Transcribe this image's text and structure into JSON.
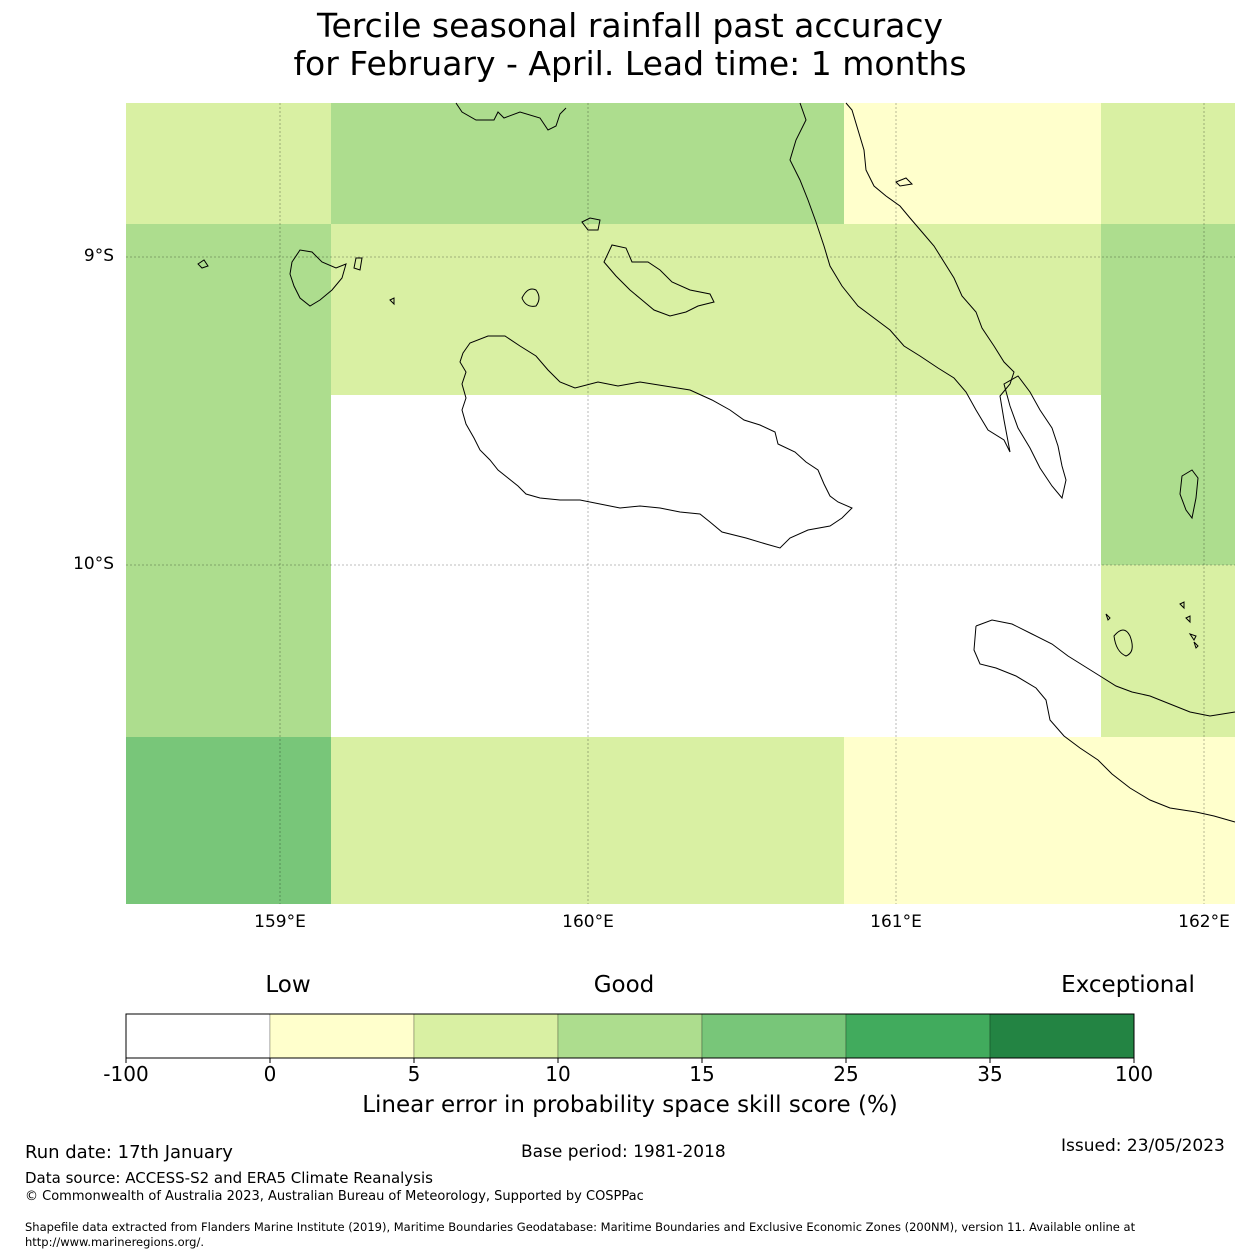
{
  "title": {
    "line1": "Tercile seasonal rainfall past accuracy",
    "line2": "for February - April. Lead time: 1 months"
  },
  "map": {
    "lat_labels": [
      "9°S",
      "10°S"
    ],
    "lon_labels": [
      "159°E",
      "160°E",
      "161°E",
      "162°E"
    ],
    "colors": {
      "none": "#ffffff",
      "c0_5": "#ffffcc",
      "c5_10": "#d9f0a3",
      "c10_15": "#addd8e",
      "c15_25": "#78c679",
      "c25_35": "#41ab5d",
      "c35_100": "#238443"
    },
    "cells": [
      {
        "row": 0,
        "col": 0,
        "category": "c5_10"
      },
      {
        "row": 0,
        "col": 1,
        "category": "c10_15"
      },
      {
        "row": 0,
        "col": 2,
        "category": "c0_5"
      },
      {
        "row": 0,
        "col": 3,
        "category": "c5_10"
      },
      {
        "row": 1,
        "col": 0,
        "category": "c10_15"
      },
      {
        "row": 1,
        "col": 1,
        "category": "c5_10"
      },
      {
        "row": 1,
        "col": 2,
        "category": "c5_10"
      },
      {
        "row": 1,
        "col": 3,
        "category": "c10_15"
      },
      {
        "row": 2,
        "col": 0,
        "category": "c10_15"
      },
      {
        "row": 2,
        "col": 1,
        "category": "none"
      },
      {
        "row": 2,
        "col": 2,
        "category": "none"
      },
      {
        "row": 2,
        "col": 3,
        "category": "c10_15"
      },
      {
        "row": 3,
        "col": 0,
        "category": "c10_15"
      },
      {
        "row": 3,
        "col": 1,
        "category": "none"
      },
      {
        "row": 3,
        "col": 2,
        "category": "none"
      },
      {
        "row": 3,
        "col": 3,
        "category": "c5_10"
      },
      {
        "row": 4,
        "col": 0,
        "category": "c15_25"
      },
      {
        "row": 4,
        "col": 1,
        "category": "c5_10"
      },
      {
        "row": 4,
        "col": 2,
        "category": "c0_5"
      },
      {
        "row": 4,
        "col": 3,
        "category": "c0_5"
      }
    ]
  },
  "colorbar": {
    "categories": [
      "Low",
      "Good",
      "Exceptional"
    ],
    "ticks": [
      "-100",
      "0",
      "5",
      "10",
      "15",
      "25",
      "35",
      "100"
    ],
    "colors": [
      "#ffffff",
      "#ffffcc",
      "#d9f0a3",
      "#addd8e",
      "#78c679",
      "#41ab5d",
      "#238443"
    ],
    "label": "Linear error in probability space skill score (%)"
  },
  "footer": {
    "run_date": "Run date: 17th January",
    "base_period": "Base period: 1981-2018",
    "issued": "Issued: 23/05/2023",
    "data_source": "Data source: ACCESS-S2 and ERA5 Climate Reanalysis",
    "copyright": "© Commonwealth of Australia 2023, Australian Bureau of Meteorology, Supported by COSPPac",
    "shapefile_line1": "Shapefile data extracted from Flanders Marine Institute (2019), Maritime Boundaries Geodatabase: Maritime Boundaries and Exclusive Economic Zones (200NM), version 11. Available online at",
    "shapefile_line2": "http://www.marineregions.org/."
  }
}
